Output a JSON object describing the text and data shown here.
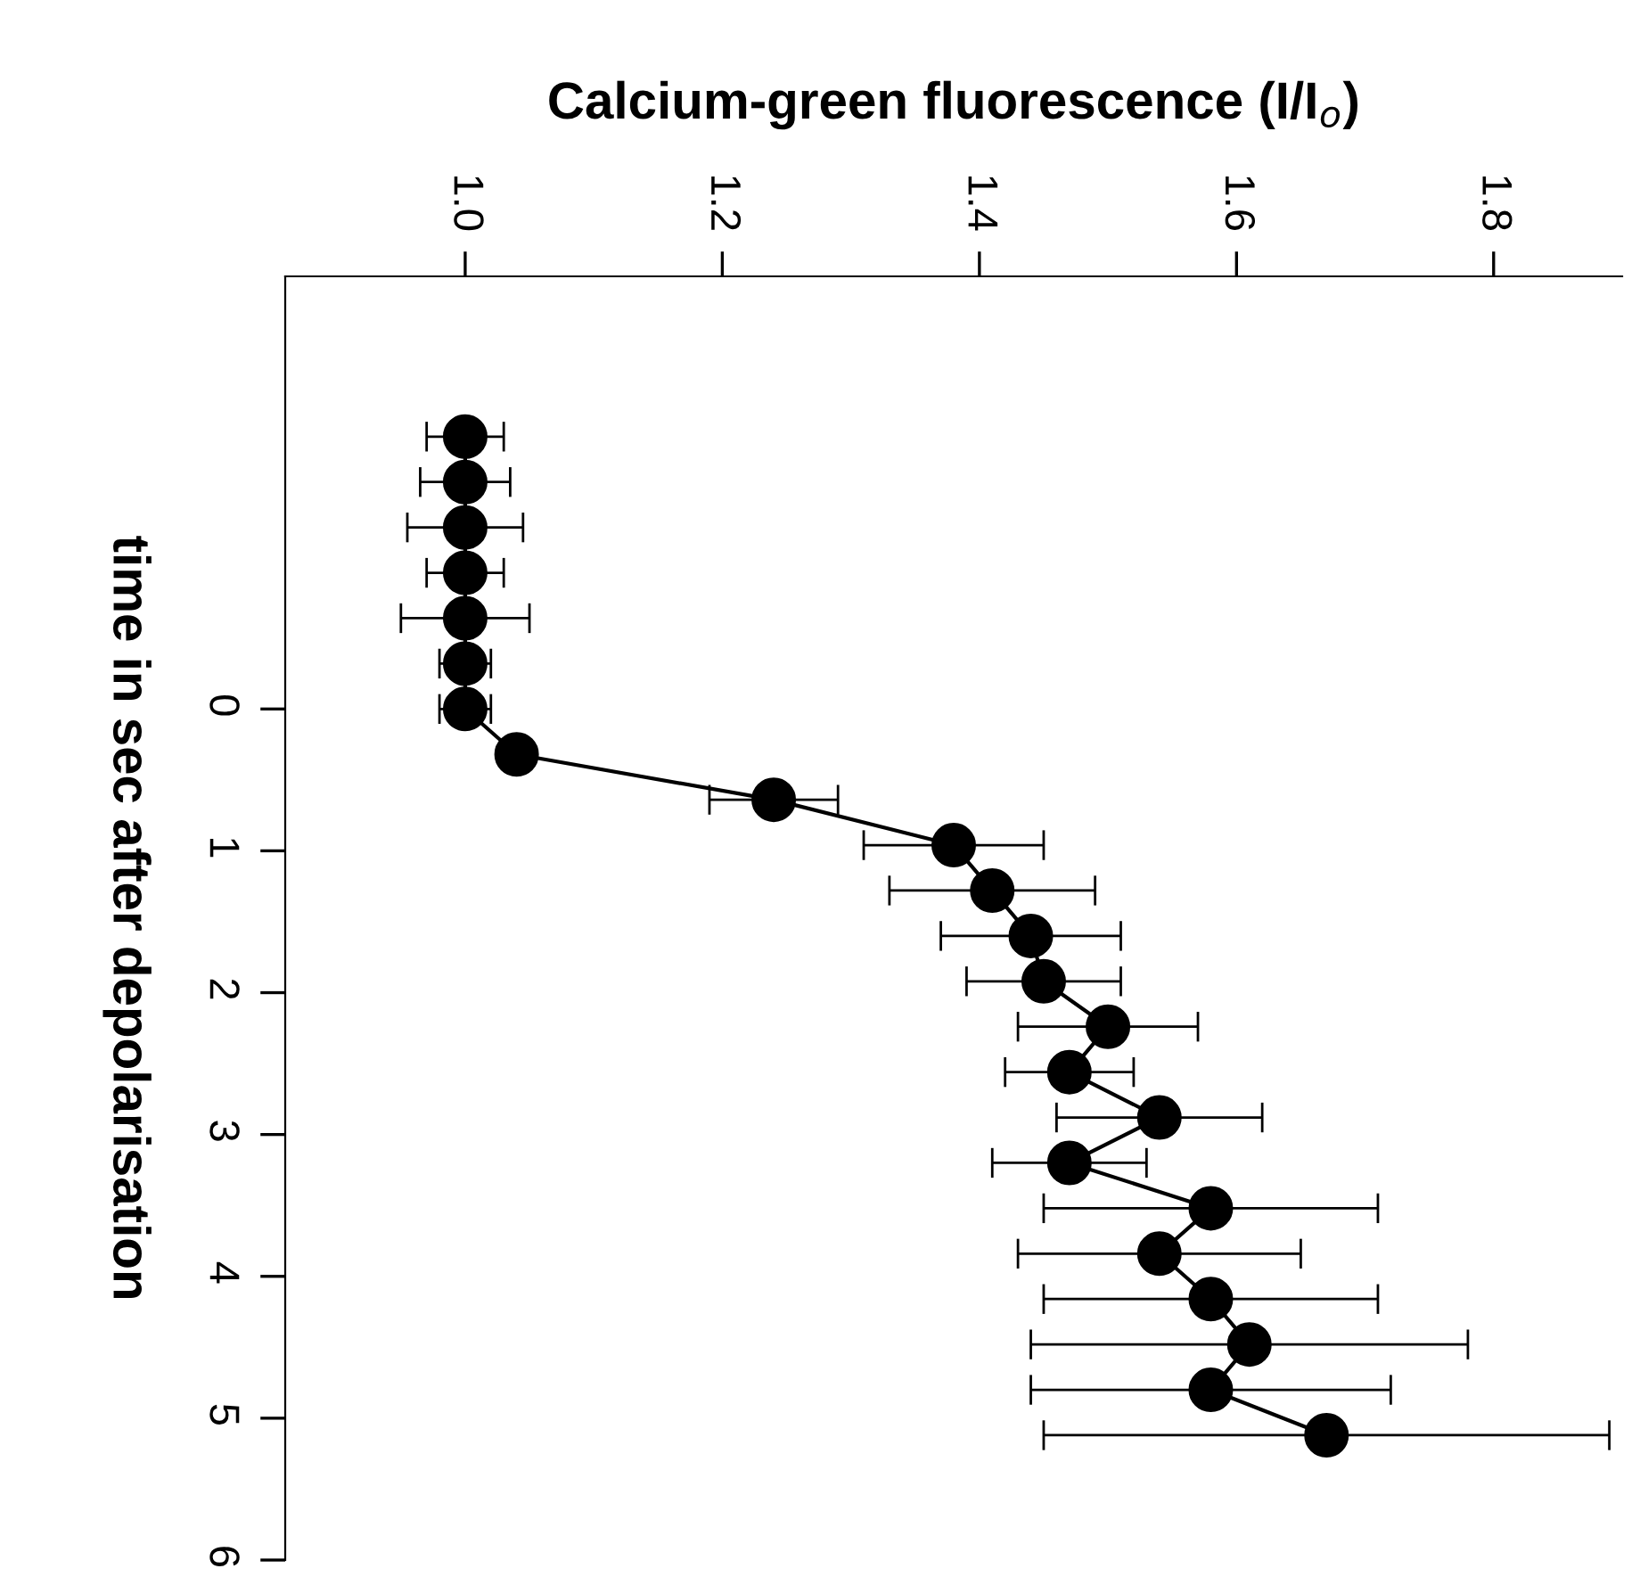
{
  "chart_data": {
    "type": "line",
    "xlabel": "Calcium-green fluorescence (I/I$_{o}$)",
    "ylabel": "time in sec after depolarisation",
    "series": [
      {
        "color": "#000000",
        "x": [
          1.0,
          1.0,
          1.0,
          1.0,
          1.0,
          1.0,
          1.0,
          1.04,
          1.24,
          1.38,
          1.41,
          1.44,
          1.45,
          1.5,
          1.47,
          1.54,
          1.47,
          1.58,
          1.54,
          1.58,
          1.61,
          1.58,
          1.67
        ],
        "values": [
          -1.92,
          -1.6,
          -1.28,
          -0.96,
          -0.64,
          -0.32,
          0,
          0.32,
          0.64,
          0.96,
          1.28,
          1.6,
          1.92,
          2.24,
          2.56,
          2.88,
          3.2,
          3.52,
          3.84,
          4.16,
          4.48,
          4.8,
          5.12
        ],
        "xerrors": [
          0.03,
          0.035,
          0.045,
          0.03,
          0.05,
          0.02,
          0.02,
          null,
          0.05,
          0.07,
          0.08,
          0.07,
          0.06,
          0.07,
          0.05,
          0.08,
          0.06,
          0.13,
          0.11,
          0.13,
          0.17,
          0.14,
          0.22
        ]
      }
    ],
    "ylim": [
      6,
      -3.05
    ],
    "yticks": [
      0,
      1,
      2,
      3,
      4,
      5,
      6
    ],
    "xlim": [
      0.86,
      1.9
    ],
    "xticks": [
      {
        "value": 1,
        "label": "1.0"
      },
      1.2,
      1.4,
      1.6,
      1.8
    ],
    "marker": "circle",
    "line_style": "solid",
    "grid": false,
    "legend": false
  }
}
